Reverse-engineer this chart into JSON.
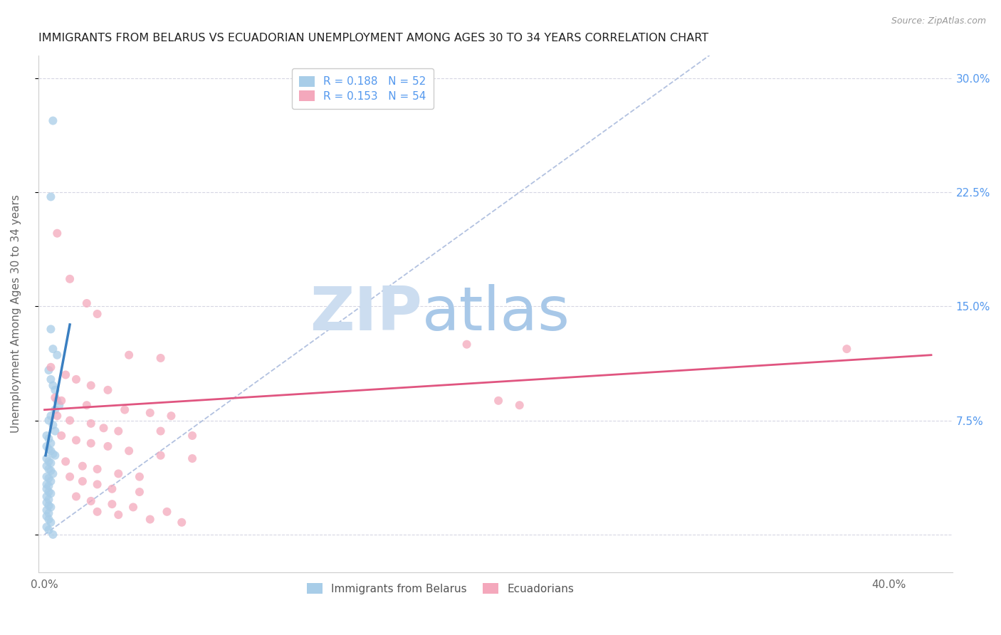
{
  "title": "IMMIGRANTS FROM BELARUS VS ECUADORIAN UNEMPLOYMENT AMONG AGES 30 TO 34 YEARS CORRELATION CHART",
  "source": "Source: ZipAtlas.com",
  "ylabel": "Unemployment Among Ages 30 to 34 years",
  "y_ticks": [
    0.0,
    0.075,
    0.15,
    0.225,
    0.3
  ],
  "y_tick_labels": [
    "",
    "7.5%",
    "15.0%",
    "22.5%",
    "30.0%"
  ],
  "x_ticks": [
    0.0,
    0.1,
    0.2,
    0.3,
    0.4
  ],
  "x_tick_labels": [
    "0.0%",
    "",
    "",
    "",
    "40.0%"
  ],
  "xlim": [
    -0.003,
    0.43
  ],
  "ylim": [
    -0.025,
    0.315
  ],
  "legend_blue_r": "R = 0.188",
  "legend_blue_n": "N = 52",
  "legend_pink_r": "R = 0.153",
  "legend_pink_n": "N = 54",
  "blue_color": "#a8cde8",
  "pink_color": "#f4a8bc",
  "blue_line_color": "#3a7fc1",
  "pink_line_color": "#e05580",
  "dashed_line_color": "#aabbdd",
  "watermark_zip_color": "#c8dff0",
  "watermark_atlas_color": "#b8d0e8",
  "title_color": "#222222",
  "right_axis_color": "#5599ee",
  "blue_scatter": [
    [
      0.004,
      0.272
    ],
    [
      0.003,
      0.222
    ],
    [
      0.003,
      0.135
    ],
    [
      0.004,
      0.122
    ],
    [
      0.006,
      0.118
    ],
    [
      0.002,
      0.108
    ],
    [
      0.003,
      0.102
    ],
    [
      0.004,
      0.098
    ],
    [
      0.005,
      0.095
    ],
    [
      0.006,
      0.088
    ],
    [
      0.007,
      0.085
    ],
    [
      0.005,
      0.082
    ],
    [
      0.003,
      0.078
    ],
    [
      0.002,
      0.075
    ],
    [
      0.004,
      0.072
    ],
    [
      0.005,
      0.068
    ],
    [
      0.001,
      0.065
    ],
    [
      0.002,
      0.063
    ],
    [
      0.003,
      0.06
    ],
    [
      0.001,
      0.058
    ],
    [
      0.002,
      0.056
    ],
    [
      0.003,
      0.055
    ],
    [
      0.004,
      0.053
    ],
    [
      0.005,
      0.052
    ],
    [
      0.001,
      0.05
    ],
    [
      0.002,
      0.048
    ],
    [
      0.003,
      0.047
    ],
    [
      0.001,
      0.045
    ],
    [
      0.002,
      0.043
    ],
    [
      0.003,
      0.042
    ],
    [
      0.004,
      0.04
    ],
    [
      0.001,
      0.038
    ],
    [
      0.002,
      0.037
    ],
    [
      0.003,
      0.035
    ],
    [
      0.001,
      0.033
    ],
    [
      0.002,
      0.032
    ],
    [
      0.001,
      0.03
    ],
    [
      0.002,
      0.028
    ],
    [
      0.003,
      0.027
    ],
    [
      0.001,
      0.025
    ],
    [
      0.002,
      0.023
    ],
    [
      0.001,
      0.021
    ],
    [
      0.002,
      0.019
    ],
    [
      0.003,
      0.018
    ],
    [
      0.001,
      0.016
    ],
    [
      0.002,
      0.014
    ],
    [
      0.001,
      0.012
    ],
    [
      0.002,
      0.01
    ],
    [
      0.003,
      0.008
    ],
    [
      0.001,
      0.005
    ],
    [
      0.002,
      0.003
    ],
    [
      0.004,
      0.0
    ]
  ],
  "pink_scatter": [
    [
      0.006,
      0.198
    ],
    [
      0.012,
      0.168
    ],
    [
      0.02,
      0.152
    ],
    [
      0.025,
      0.145
    ],
    [
      0.04,
      0.118
    ],
    [
      0.055,
      0.116
    ],
    [
      0.003,
      0.11
    ],
    [
      0.01,
      0.105
    ],
    [
      0.015,
      0.102
    ],
    [
      0.022,
      0.098
    ],
    [
      0.03,
      0.095
    ],
    [
      0.005,
      0.09
    ],
    [
      0.008,
      0.088
    ],
    [
      0.02,
      0.085
    ],
    [
      0.038,
      0.082
    ],
    [
      0.05,
      0.08
    ],
    [
      0.06,
      0.078
    ],
    [
      0.006,
      0.078
    ],
    [
      0.012,
      0.075
    ],
    [
      0.022,
      0.073
    ],
    [
      0.028,
      0.07
    ],
    [
      0.035,
      0.068
    ],
    [
      0.055,
      0.068
    ],
    [
      0.07,
      0.065
    ],
    [
      0.008,
      0.065
    ],
    [
      0.015,
      0.062
    ],
    [
      0.022,
      0.06
    ],
    [
      0.03,
      0.058
    ],
    [
      0.04,
      0.055
    ],
    [
      0.055,
      0.052
    ],
    [
      0.07,
      0.05
    ],
    [
      0.01,
      0.048
    ],
    [
      0.018,
      0.045
    ],
    [
      0.025,
      0.043
    ],
    [
      0.035,
      0.04
    ],
    [
      0.045,
      0.038
    ],
    [
      0.012,
      0.038
    ],
    [
      0.018,
      0.035
    ],
    [
      0.025,
      0.033
    ],
    [
      0.032,
      0.03
    ],
    [
      0.045,
      0.028
    ],
    [
      0.015,
      0.025
    ],
    [
      0.022,
      0.022
    ],
    [
      0.032,
      0.02
    ],
    [
      0.042,
      0.018
    ],
    [
      0.058,
      0.015
    ],
    [
      0.025,
      0.015
    ],
    [
      0.035,
      0.013
    ],
    [
      0.05,
      0.01
    ],
    [
      0.065,
      0.008
    ],
    [
      0.2,
      0.125
    ],
    [
      0.215,
      0.088
    ],
    [
      0.225,
      0.085
    ],
    [
      0.38,
      0.122
    ]
  ],
  "blue_trendline": [
    [
      0.0005,
      0.052
    ],
    [
      0.012,
      0.138
    ]
  ],
  "pink_trendline": [
    [
      0.0,
      0.082
    ],
    [
      0.42,
      0.118
    ]
  ],
  "dashed_line": [
    [
      0.0,
      0.0
    ],
    [
      0.315,
      0.315
    ]
  ]
}
